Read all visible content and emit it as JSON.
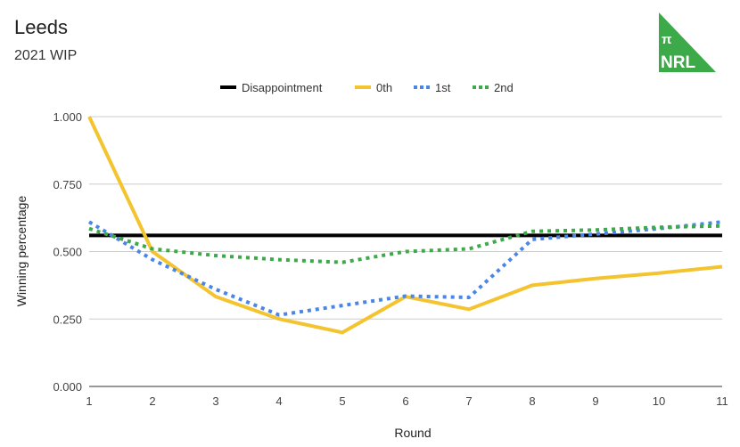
{
  "title": "Leeds",
  "subtitle": "2021 WIP",
  "logo": {
    "symbol": "π",
    "text": "NRL",
    "color": "#3daa4a"
  },
  "chart_data": {
    "type": "line",
    "xlabel": "Round",
    "ylabel": "Winning percentage",
    "x": [
      1,
      2,
      3,
      4,
      5,
      6,
      7,
      8,
      9,
      10,
      11
    ],
    "xlim": [
      1,
      11
    ],
    "ylim": [
      0,
      1
    ],
    "yticks": [
      "0.000",
      "0.250",
      "0.500",
      "0.750",
      "1.000"
    ],
    "ytick_values": [
      0,
      0.25,
      0.5,
      0.75,
      1
    ],
    "legend_position": "top",
    "series": [
      {
        "name": "Disappointment",
        "color": "#000000",
        "style": "solid",
        "values": [
          0.56,
          0.56,
          0.56,
          0.56,
          0.56,
          0.56,
          0.56,
          0.56,
          0.56,
          0.56,
          0.56
        ]
      },
      {
        "name": "0th",
        "color": "#f4c430",
        "style": "solid",
        "values": [
          1.0,
          0.5,
          0.333,
          0.25,
          0.2,
          0.333,
          0.286,
          0.375,
          0.4,
          0.42,
          0.444
        ]
      },
      {
        "name": "1st",
        "color": "#4a86e8",
        "style": "dotted",
        "values": [
          0.61,
          0.47,
          0.36,
          0.265,
          0.3,
          0.335,
          0.33,
          0.545,
          0.565,
          0.585,
          0.61
        ]
      },
      {
        "name": "2nd",
        "color": "#3daa4a",
        "style": "dotted",
        "values": [
          0.585,
          0.51,
          0.485,
          0.47,
          0.46,
          0.5,
          0.51,
          0.575,
          0.58,
          0.59,
          0.595
        ]
      }
    ]
  }
}
